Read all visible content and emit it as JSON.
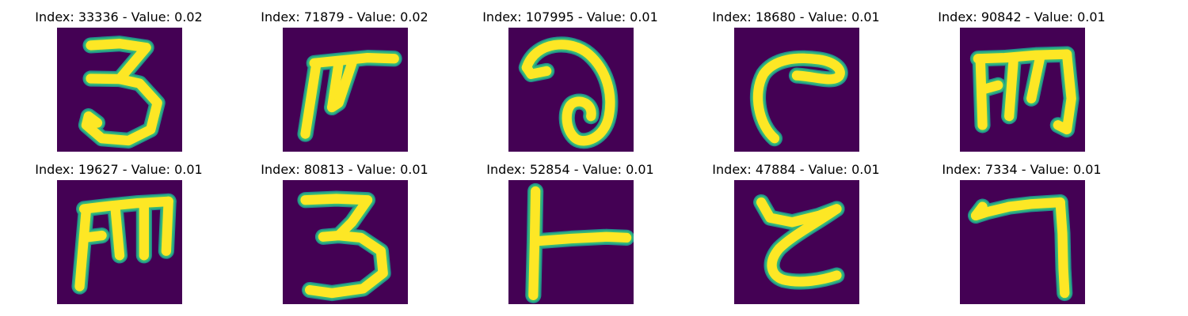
{
  "figure": {
    "colors": {
      "background": "#440154",
      "stroke_core": "#fde725",
      "stroke_edge": "#35b779",
      "stroke_halo": "#21918c"
    },
    "panels": [
      {
        "title": "Index: 33336 - Value: 0.02"
      },
      {
        "title": "Index: 71879 - Value: 0.02"
      },
      {
        "title": "Index: 107995 - Value: 0.01"
      },
      {
        "title": "Index: 18680 - Value: 0.01"
      },
      {
        "title": "Index: 90842 - Value: 0.01"
      },
      {
        "title": "Index: 19627 - Value: 0.01"
      },
      {
        "title": "Index: 80813 - Value: 0.01"
      },
      {
        "title": "Index: 52854 - Value: 0.01"
      },
      {
        "title": "Index: 47884 - Value: 0.01"
      },
      {
        "title": "Index: 7334 - Value: 0.01"
      }
    ]
  }
}
